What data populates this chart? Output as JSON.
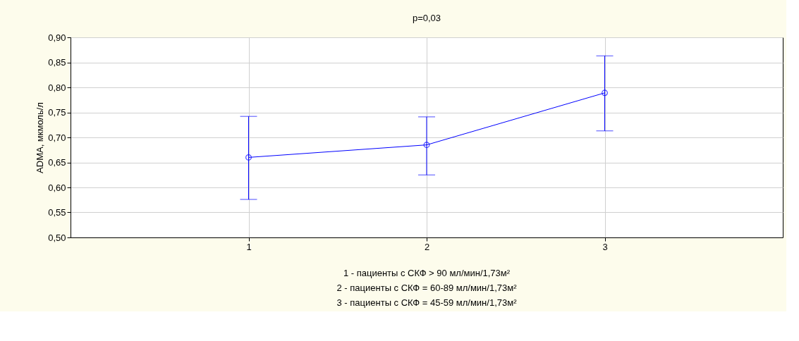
{
  "chart_data": {
    "type": "line",
    "title": "p=0,03",
    "ylabel": "ADMA, мкмоль/л",
    "categories": [
      "1",
      "2",
      "3"
    ],
    "series": [
      {
        "color": "#0000ff",
        "values": [
          0.66,
          0.685,
          0.789
        ],
        "errors": [
          [
            0.576,
            0.742
          ],
          [
            0.625,
            0.741
          ],
          [
            0.713,
            0.863
          ]
        ]
      }
    ],
    "ylim": [
      0.5,
      0.9
    ],
    "yticks": [
      {
        "value": 0.5,
        "label": "0,50"
      },
      {
        "value": 0.55,
        "label": "0,55"
      },
      {
        "value": 0.6,
        "label": "0,60"
      },
      {
        "value": 0.65,
        "label": "0,65"
      },
      {
        "value": 0.7,
        "label": "0,70"
      },
      {
        "value": 0.75,
        "label": "0,75"
      },
      {
        "value": 0.8,
        "label": "0,80"
      },
      {
        "value": 0.85,
        "label": "0,85"
      },
      {
        "value": 0.9,
        "label": "0,90"
      }
    ],
    "grid": true,
    "marker": "circle",
    "line_style": "solid",
    "annotations": [
      "1 - пациенты с СКФ > 90 мл/мин/1,73м²",
      "2 - пациенты с СКФ = 60-89 мл/мин/1,73м²",
      "3 - пациенты с СКФ = 45-59 мл/мин/1,73м²"
    ]
  }
}
